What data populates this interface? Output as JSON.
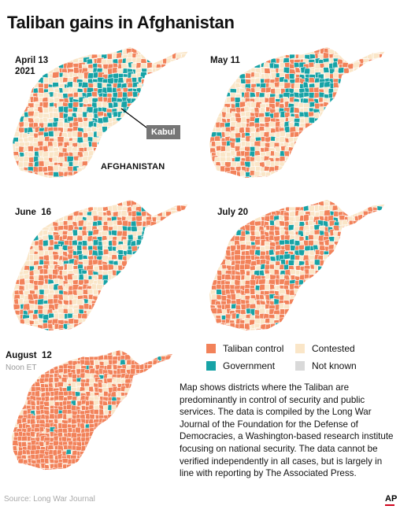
{
  "title": "Taliban gains in Afghanistan",
  "colors": {
    "taliban": "#f2825a",
    "government": "#17a3a6",
    "contested": "#fae6c8",
    "not_known": "#d9d9d9",
    "border": "#ffffff",
    "kabul_tag": "#767676",
    "ap_red": "#d0021b"
  },
  "panels": [
    {
      "date_line1": "April 13",
      "date_line2": "2021",
      "mix": {
        "taliban": 0.32,
        "government": 0.25,
        "contested": 0.43
      }
    },
    {
      "date_line1": "May 11",
      "date_line2": "",
      "mix": {
        "taliban": 0.38,
        "government": 0.22,
        "contested": 0.4
      }
    },
    {
      "date_line1": "June  16",
      "date_line2": "",
      "mix": {
        "taliban": 0.48,
        "government": 0.17,
        "contested": 0.35
      }
    },
    {
      "date_line1": "July 20",
      "date_line2": "",
      "mix": {
        "taliban": 0.66,
        "government": 0.1,
        "contested": 0.24
      }
    },
    {
      "date_line1": "August  12",
      "date_line2": "",
      "sublabel": "Noon ET",
      "mix": {
        "taliban": 0.86,
        "government": 0.04,
        "contested": 0.1
      }
    }
  ],
  "map_labels": {
    "kabul": "Kabul",
    "country": "AFGHANISTAN"
  },
  "legend": [
    {
      "key": "taliban",
      "label": "Taliban control"
    },
    {
      "key": "contested",
      "label": "Contested"
    },
    {
      "key": "government",
      "label": "Government"
    },
    {
      "key": "not_known",
      "label": "Not known"
    }
  ],
  "description": "Map shows districts where the Taliban are predominantly in control of security and public services. The data is compiled by the Long War Journal of the Foundation for the Defense of Democracies, a Washington-based research institute focusing on national security. The data cannot be verified independently in all cases,  but is largely in line with reporting by The Associated Press.",
  "source": "Source:  Long War Journal",
  "credit": "AP"
}
